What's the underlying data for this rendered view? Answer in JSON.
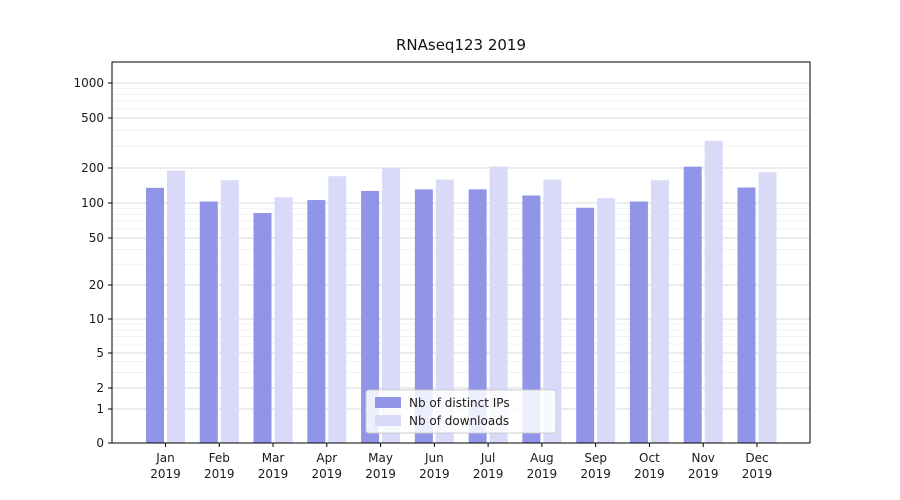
{
  "chart_data": {
    "type": "bar",
    "title": "RNAseq123 2019",
    "yscale": "symlog",
    "ylim": [
      0,
      1000
    ],
    "y_ticks": [
      0,
      1,
      2,
      5,
      10,
      20,
      50,
      100,
      200,
      500,
      1000
    ],
    "y_minor_gridlines": [
      3,
      4,
      6,
      7,
      8,
      9,
      30,
      40,
      60,
      70,
      80,
      90,
      300,
      400,
      600,
      700,
      800,
      900
    ],
    "grid": true,
    "legend_position": "lower center",
    "categories": [
      "Jan 2019",
      "Feb 2019",
      "Mar 2019",
      "Apr 2019",
      "May 2019",
      "Jun 2019",
      "Jul 2019",
      "Aug 2019",
      "Sep 2019",
      "Oct 2019",
      "Nov 2019",
      "Dec 2019"
    ],
    "series": [
      {
        "name": "Nb of distinct IPs",
        "color": "#9095e8",
        "values": [
          135,
          103,
          82,
          106,
          127,
          131,
          131,
          116,
          91,
          103,
          205,
          136
        ]
      },
      {
        "name": "Nb of downloads",
        "color": "#d8daf7",
        "values": [
          190,
          157,
          112,
          170,
          200,
          159,
          205,
          159,
          110,
          157,
          330,
          184
        ]
      }
    ]
  },
  "colors": {
    "grid_major": "#d9d9d9",
    "grid_minor": "#ececec",
    "axis": "#000000",
    "text": "#1a1a1a",
    "legend_border": "#cccccc",
    "background": "#ffffff"
  }
}
